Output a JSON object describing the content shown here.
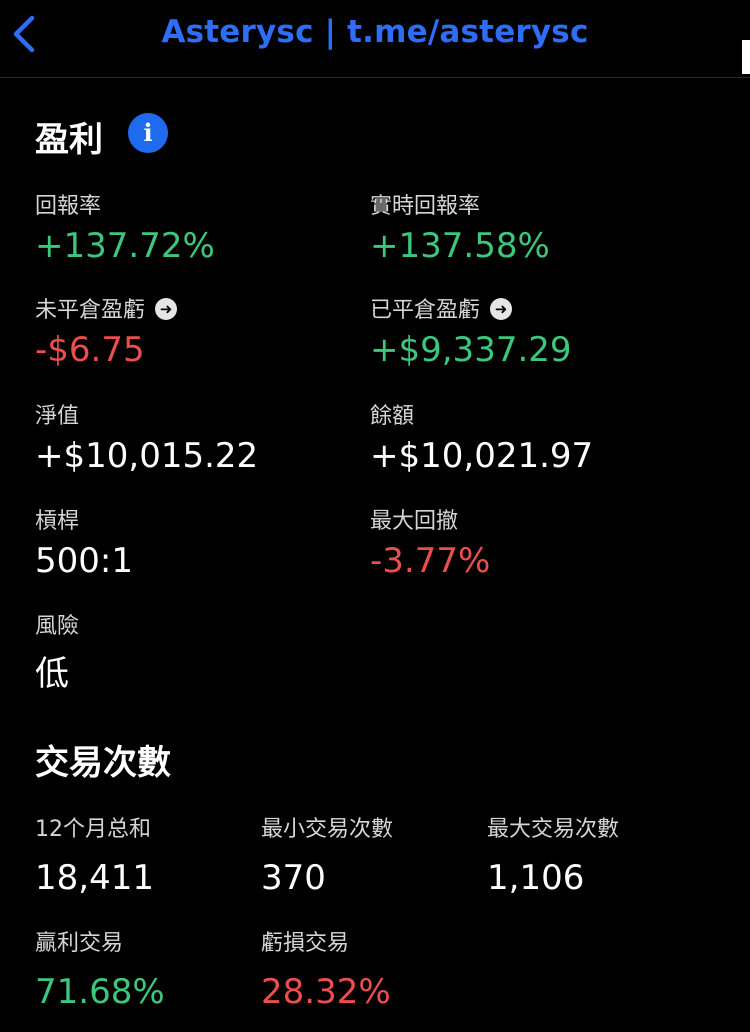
{
  "header": {
    "title": "Asterysc | t.me/asterysc"
  },
  "profit": {
    "title": "盈利",
    "items": [
      {
        "label": "回報率",
        "value": "+137.72%"
      },
      {
        "label": "實時回報率",
        "value": "+137.58%"
      },
      {
        "label": "未平倉盈虧",
        "value": "-$6.75"
      },
      {
        "label": "已平倉盈虧",
        "value": "+$9,337.29"
      },
      {
        "label": "淨值",
        "value": "+$10,015.22"
      },
      {
        "label": "餘額",
        "value": "+$10,021.97"
      },
      {
        "label": "槓桿",
        "value": "500:1"
      },
      {
        "label": "最大回撤",
        "value": "-3.77%"
      },
      {
        "label": "風險",
        "value": "低"
      }
    ]
  },
  "trades": {
    "title": "交易次數",
    "items": [
      {
        "label": "12个月总和",
        "value": "18,411"
      },
      {
        "label": "最小交易次數",
        "value": "370"
      },
      {
        "label": "最大交易次數",
        "value": "1,106"
      },
      {
        "label": "贏利交易",
        "value": "71.68%"
      },
      {
        "label": "虧損交易",
        "value": "28.32%"
      }
    ]
  },
  "colors": {
    "positive": "#3cc77d",
    "negative": "#ec4d4d",
    "accent": "#1e6bf0"
  },
  "icons": {
    "back": "chevron-left-icon",
    "info": "info-icon",
    "arrow": "arrow-right-circle-icon"
  }
}
